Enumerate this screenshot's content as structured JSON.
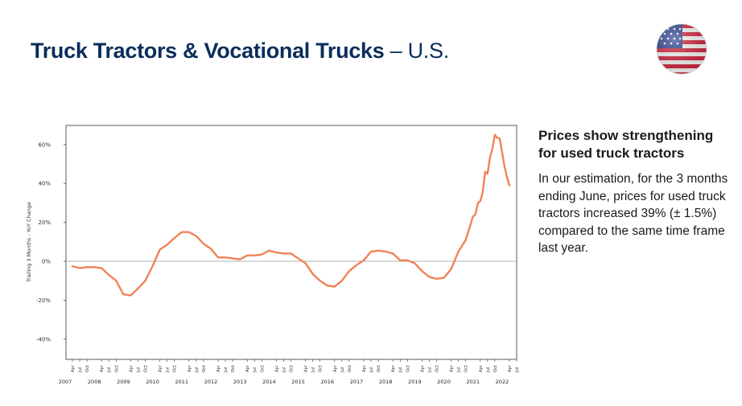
{
  "header": {
    "title_bold": "Truck Tractors & Vocational Trucks",
    "title_rest": "– U.S."
  },
  "flag_icon": "us-flag-icon",
  "sidebar": {
    "heading": "Prices show strengthening for used truck tractors",
    "body": "In our estimation, for the 3 months ending June, prices for used truck tractors increased 39% (± 1.5%) compared to the same time frame last year."
  },
  "colors": {
    "line": "#f08355",
    "title": "#0b2d5b",
    "zero_line": "#b0b0b0"
  },
  "chart_data": {
    "type": "line",
    "ylabel": "Trailing 3 Months - YoY Change",
    "ylim": [
      -50,
      70
    ],
    "yticks": [
      -40,
      -20,
      0,
      20,
      40,
      60
    ],
    "ytick_labels": [
      "-40%",
      "-20%",
      "0%",
      "20%",
      "40%",
      "60%"
    ],
    "year_labels": [
      "2007",
      "2008",
      "2009",
      "2010",
      "2011",
      "2012",
      "2013",
      "2014",
      "2015",
      "2016",
      "2017",
      "2018",
      "2019",
      "2020",
      "2021",
      "2022"
    ],
    "month_labels": [
      "Apr",
      "Jul",
      "Oct"
    ],
    "x_start": 2007.25,
    "x_end": 2022.5,
    "series": [
      {
        "values": [
          [
            2007.25,
            -2.5
          ],
          [
            2007.5,
            -3.5
          ],
          [
            2007.75,
            -3
          ],
          [
            2008.0,
            -3
          ],
          [
            2008.25,
            -3.5
          ],
          [
            2008.5,
            -7
          ],
          [
            2008.75,
            -10
          ],
          [
            2009.0,
            -17
          ],
          [
            2009.25,
            -17.5
          ],
          [
            2009.5,
            -14
          ],
          [
            2009.75,
            -10
          ],
          [
            2010.0,
            -2.5
          ],
          [
            2010.25,
            6
          ],
          [
            2010.5,
            8.5
          ],
          [
            2010.75,
            12
          ],
          [
            2011.0,
            15
          ],
          [
            2011.25,
            15
          ],
          [
            2011.5,
            13
          ],
          [
            2011.75,
            9
          ],
          [
            2012.0,
            6.5
          ],
          [
            2012.25,
            2
          ],
          [
            2012.5,
            2
          ],
          [
            2012.75,
            1.5
          ],
          [
            2013.0,
            1
          ],
          [
            2013.25,
            3
          ],
          [
            2013.5,
            3
          ],
          [
            2013.75,
            3.5
          ],
          [
            2014.0,
            5.5
          ],
          [
            2014.25,
            4.5
          ],
          [
            2014.5,
            4
          ],
          [
            2014.75,
            4
          ],
          [
            2015.0,
            1.5
          ],
          [
            2015.25,
            -1
          ],
          [
            2015.5,
            -6.5
          ],
          [
            2015.75,
            -10
          ],
          [
            2016.0,
            -12.5
          ],
          [
            2016.25,
            -13
          ],
          [
            2016.5,
            -10
          ],
          [
            2016.75,
            -5
          ],
          [
            2017.0,
            -2
          ],
          [
            2017.25,
            0.5
          ],
          [
            2017.5,
            5
          ],
          [
            2017.75,
            5.5
          ],
          [
            2018.0,
            5
          ],
          [
            2018.25,
            4
          ],
          [
            2018.5,
            0.5
          ],
          [
            2018.75,
            0.5
          ],
          [
            2019.0,
            -1
          ],
          [
            2019.25,
            -5
          ],
          [
            2019.5,
            -8
          ],
          [
            2019.75,
            -9
          ],
          [
            2020.0,
            -8.5
          ],
          [
            2020.25,
            -4
          ],
          [
            2020.5,
            5
          ],
          [
            2020.75,
            11
          ],
          [
            2021.0,
            23
          ],
          [
            2021.08,
            24
          ],
          [
            2021.17,
            30
          ],
          [
            2021.25,
            31
          ],
          [
            2021.33,
            35
          ],
          [
            2021.42,
            46
          ],
          [
            2021.5,
            45
          ],
          [
            2021.58,
            53
          ],
          [
            2021.67,
            58
          ],
          [
            2021.75,
            65
          ],
          [
            2021.83,
            63.5
          ],
          [
            2021.92,
            63
          ],
          [
            2022.0,
            56
          ],
          [
            2022.08,
            49
          ],
          [
            2022.17,
            43
          ],
          [
            2022.25,
            39
          ]
        ]
      }
    ]
  }
}
